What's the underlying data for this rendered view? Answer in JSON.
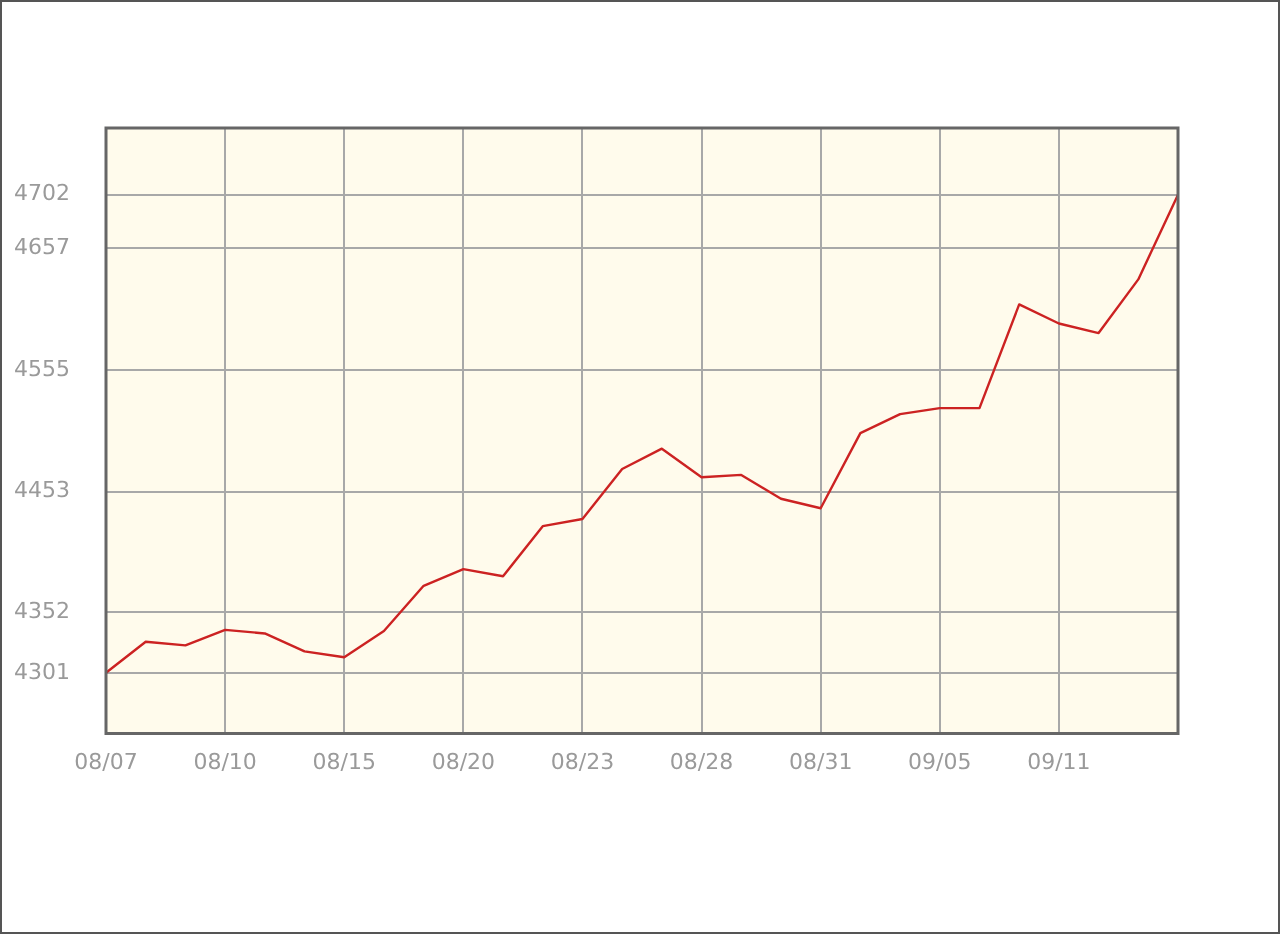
{
  "chart_data": {
    "type": "line",
    "categories": [
      "08/07",
      null,
      null,
      "08/10",
      null,
      null,
      "08/15",
      null,
      null,
      "08/20",
      null,
      null,
      "08/23",
      null,
      null,
      "08/28",
      null,
      null,
      "08/31",
      null,
      null,
      "09/05",
      null,
      null,
      "09/11",
      null,
      null,
      null
    ],
    "series": [
      {
        "color": "#cc2222",
        "values": [
          4301,
          4327,
          4324,
          4337,
          4334,
          4319,
          4314,
          4336,
          4374,
          4388,
          4382,
          4424,
          4430,
          4472,
          4489,
          4465,
          4467,
          4447,
          4439,
          4502,
          4518,
          4523,
          4523,
          4610,
          4594,
          4586,
          4631,
          4702
        ]
      }
    ],
    "ylim": [
      4250,
      4758
    ],
    "yticks": [
      4301,
      4352,
      4453,
      4555,
      4657,
      4702
    ],
    "grid": true,
    "legend": false,
    "marker": "none",
    "line_style": "solid"
  }
}
